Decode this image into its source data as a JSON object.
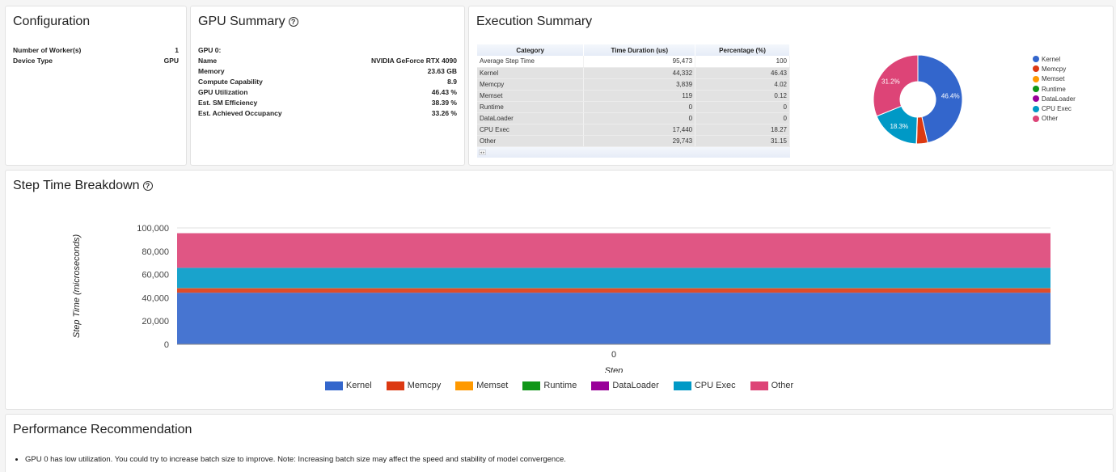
{
  "configuration": {
    "title": "Configuration",
    "rows": [
      {
        "label": "Number of Worker(s)",
        "value": "1"
      },
      {
        "label": "Device Type",
        "value": "GPU"
      }
    ]
  },
  "gpu_summary": {
    "title": "GPU Summary",
    "help_icon": "question-circle-icon",
    "rows": [
      {
        "label": "GPU 0:",
        "value": ""
      },
      {
        "label": "Name",
        "value": "NVIDIA GeForce RTX 4090"
      },
      {
        "label": "Memory",
        "value": "23.63 GB"
      },
      {
        "label": "Compute Capability",
        "value": "8.9"
      },
      {
        "label": "GPU Utilization",
        "value": "46.43 %"
      },
      {
        "label": "Est. SM Efficiency",
        "value": "38.39 %"
      },
      {
        "label": "Est. Achieved Occupancy",
        "value": "33.26 %"
      }
    ]
  },
  "execution_summary": {
    "title": "Execution Summary",
    "table": {
      "headers": [
        "Category",
        "Time Duration (us)",
        "Percentage (%)"
      ],
      "rows": [
        [
          "Average Step Time",
          "95,473",
          "100"
        ],
        [
          "Kernel",
          "44,332",
          "46.43"
        ],
        [
          "Memcpy",
          "3,839",
          "4.02"
        ],
        [
          "Memset",
          "119",
          "0.12"
        ],
        [
          "Runtime",
          "0",
          "0"
        ],
        [
          "DataLoader",
          "0",
          "0"
        ],
        [
          "CPU Exec",
          "17,440",
          "18.27"
        ],
        [
          "Other",
          "29,743",
          "31.15"
        ]
      ]
    }
  },
  "step_time_breakdown": {
    "title": "Step Time Breakdown",
    "help_icon": "question-circle-icon"
  },
  "performance_recommendation": {
    "title": "Performance Recommendation",
    "items": [
      "GPU 0 has low utilization. You could try to increase batch size to improve. Note: Increasing batch size may affect the speed and stability of model convergence."
    ]
  },
  "chart_data": [
    {
      "type": "pie",
      "donut": true,
      "categories": [
        "Kernel",
        "Memcpy",
        "Memset",
        "Runtime",
        "DataLoader",
        "CPU Exec",
        "Other"
      ],
      "values": [
        46.43,
        4.02,
        0.12,
        0,
        0,
        18.27,
        31.15
      ],
      "slice_labels": [
        "46.4%",
        "",
        "",
        "",
        "",
        "18.3%",
        "31.2%"
      ],
      "colors": [
        "#3366cc",
        "#dc3912",
        "#ff9900",
        "#109618",
        "#990099",
        "#0099c6",
        "#dd4477"
      ],
      "legend": "right"
    },
    {
      "type": "bar",
      "stacked": true,
      "categories": [
        "0"
      ],
      "series": [
        {
          "name": "Kernel",
          "values": [
            44332
          ],
          "color": "#3366cc"
        },
        {
          "name": "Memcpy",
          "values": [
            3839
          ],
          "color": "#dc3912"
        },
        {
          "name": "Memset",
          "values": [
            119
          ],
          "color": "#ff9900"
        },
        {
          "name": "Runtime",
          "values": [
            0
          ],
          "color": "#109618"
        },
        {
          "name": "DataLoader",
          "values": [
            0
          ],
          "color": "#990099"
        },
        {
          "name": "CPU Exec",
          "values": [
            17440
          ],
          "color": "#0099c6"
        },
        {
          "name": "Other",
          "values": [
            29743
          ],
          "color": "#dd4477"
        }
      ],
      "xlabel": "Step",
      "ylabel": "Step Time (microseconds)",
      "ylim": [
        0,
        100000
      ],
      "yticks": [
        "0",
        "20,000",
        "40,000",
        "60,000",
        "80,000",
        "100,000"
      ],
      "legend": "bottom"
    }
  ]
}
